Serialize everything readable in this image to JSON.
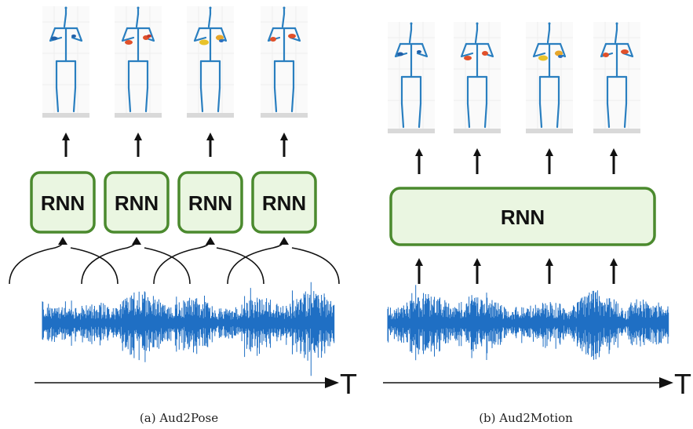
{
  "panels": [
    {
      "id": "a",
      "caption": "(a) Aud2Pose",
      "rnn_labels": [
        "RNN",
        "RNN",
        "RNN",
        "RNN"
      ],
      "axis_label": "T"
    },
    {
      "id": "b",
      "caption": "(b) Aud2Motion",
      "rnn_labels": [
        "RNN"
      ],
      "axis_label": "T"
    }
  ],
  "colors": {
    "rnn_fill": "#eaf6e1",
    "rnn_stroke": "#4b8a2e",
    "waveform": "#1f6fc4",
    "skeleton": "#2a7fc0",
    "arrow": "#111111"
  }
}
